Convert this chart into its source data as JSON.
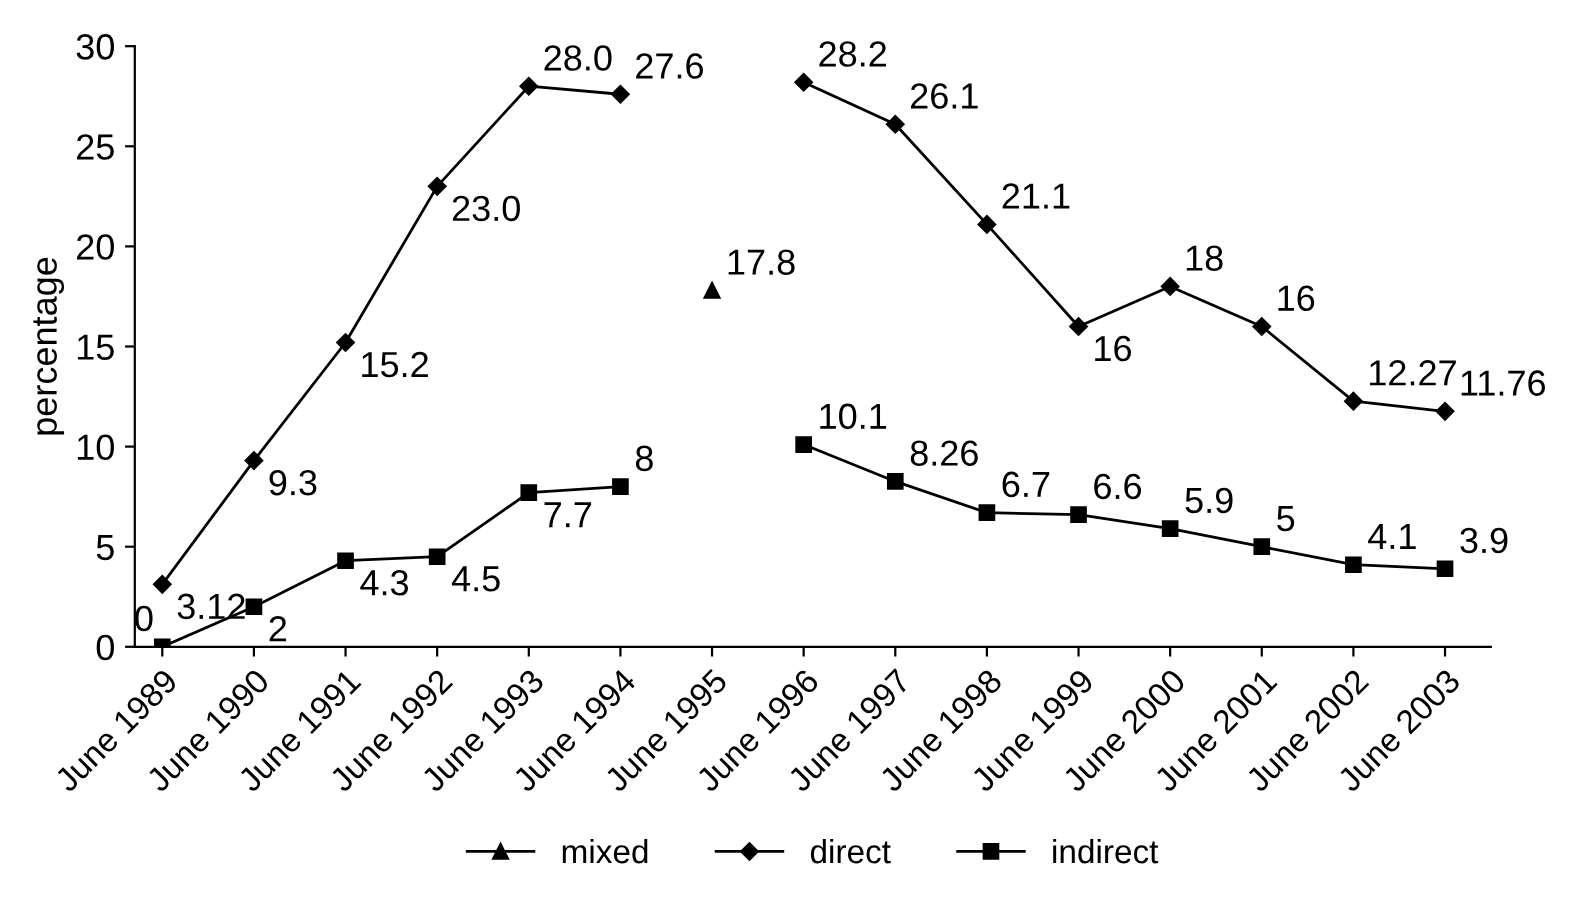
{
  "chart_data": {
    "type": "line",
    "ylabel": "percentage",
    "categories": [
      "June 1989",
      "June 1990",
      "June 1991",
      "June 1992",
      "June 1993",
      "June 1994",
      "June 1995",
      "June 1996",
      "June 1997",
      "June 1998",
      "June 1999",
      "June 2000",
      "June 2001",
      "June 2002",
      "June 2003"
    ],
    "series": [
      {
        "name": "mixed",
        "color": "#000000",
        "marker": "triangle",
        "values": [
          null,
          null,
          null,
          null,
          null,
          null,
          17.8,
          null,
          null,
          null,
          null,
          null,
          null,
          null,
          null
        ],
        "value_labels": [
          null,
          null,
          null,
          null,
          null,
          null,
          "17.8",
          null,
          null,
          null,
          null,
          null,
          null,
          null,
          null
        ]
      },
      {
        "name": "direct",
        "color": "#000000",
        "marker": "diamond",
        "values": [
          3.12,
          9.3,
          15.2,
          23.0,
          28.0,
          27.6,
          null,
          28.2,
          26.1,
          21.1,
          16,
          18,
          16,
          12.27,
          11.76
        ],
        "value_labels": [
          "3.12",
          "9.3",
          "15.2",
          "23.0",
          "28.0",
          "27.6",
          null,
          "28.2",
          "26.1",
          "21.1",
          "16",
          "18",
          "16",
          "12.27",
          "11.76"
        ]
      },
      {
        "name": "indirect",
        "color": "#000000",
        "marker": "square",
        "values": [
          0,
          2,
          4.3,
          4.5,
          7.7,
          8,
          null,
          10.1,
          8.26,
          6.7,
          6.6,
          5.9,
          5,
          4.1,
          3.9
        ],
        "value_labels": [
          "0",
          "2",
          "4.3",
          "4.5",
          "7.7",
          "8",
          null,
          "10.1",
          "8.26",
          "6.7",
          "6.6",
          "5.9",
          "5",
          "4.1",
          "3.9"
        ]
      }
    ],
    "ylim": [
      0,
      30
    ],
    "yticks": [
      0,
      5,
      10,
      15,
      20,
      25,
      30
    ],
    "grid": false,
    "legend": "bottom",
    "line_style": "solid"
  }
}
